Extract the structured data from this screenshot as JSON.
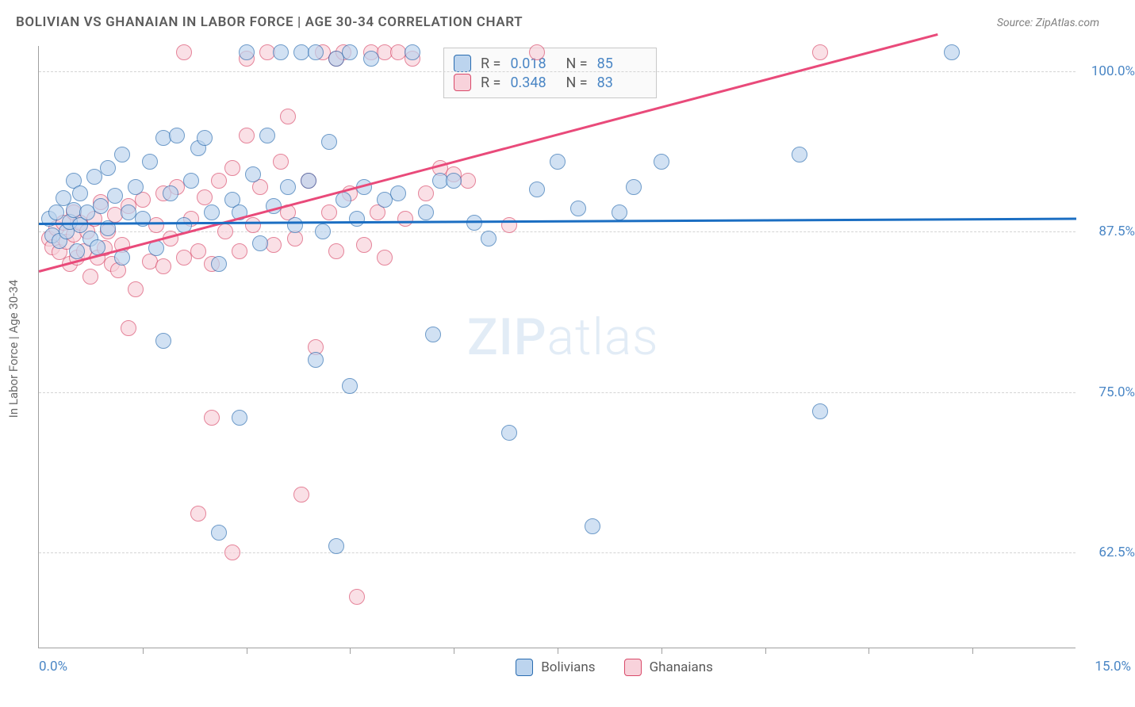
{
  "title": "BOLIVIAN VS GHANAIAN IN LABOR FORCE | AGE 30-34 CORRELATION CHART",
  "source": "Source: ZipAtlas.com",
  "y_axis_label": "In Labor Force | Age 30-34",
  "watermark_a": "ZIP",
  "watermark_b": "atlas",
  "chart": {
    "type": "scatter-with-trend",
    "background_color": "#ffffff",
    "grid_color": "#d4d4d4",
    "axis_color": "#a0a0a0",
    "xlim": [
      0,
      15
    ],
    "ylim": [
      55,
      102
    ],
    "x_tick_positions": [
      1.5,
      3.0,
      4.5,
      6.0,
      7.5,
      9.0,
      10.5,
      12.0,
      13.5
    ],
    "x_start_label": "0.0%",
    "x_end_label": "15.0%",
    "y_gridlines": [
      62.5,
      75.0,
      87.5,
      100.0
    ],
    "y_tick_labels": [
      "62.5%",
      "75.0%",
      "87.5%",
      "100.0%"
    ],
    "label_color": "#4a86c5",
    "label_fontsize": 17,
    "title_fontsize": 17,
    "title_color": "#5c5c5c",
    "marker_radius": 10,
    "marker_opacity": 0.68
  },
  "series": {
    "blue": {
      "name": "Bolivians",
      "fill": "#bcd4ee",
      "stroke": "#2a6cb0",
      "trend_color": "#1b6ec2",
      "trend": {
        "x1": 0,
        "y1": 88.2,
        "x2": 15,
        "y2": 88.6
      },
      "stats": {
        "R": "0.018",
        "N": "85"
      },
      "points": [
        [
          0.15,
          88.5
        ],
        [
          0.2,
          87.2
        ],
        [
          0.25,
          89.0
        ],
        [
          0.3,
          86.8
        ],
        [
          0.35,
          90.1
        ],
        [
          0.4,
          87.5
        ],
        [
          0.45,
          88.3
        ],
        [
          0.5,
          89.2
        ],
        [
          0.5,
          91.5
        ],
        [
          0.55,
          86.0
        ],
        [
          0.6,
          88.0
        ],
        [
          0.6,
          90.5
        ],
        [
          0.7,
          89.0
        ],
        [
          0.75,
          87.0
        ],
        [
          0.8,
          91.8
        ],
        [
          0.85,
          86.3
        ],
        [
          0.9,
          89.5
        ],
        [
          1.0,
          92.5
        ],
        [
          1.0,
          87.8
        ],
        [
          1.1,
          90.3
        ],
        [
          1.2,
          93.5
        ],
        [
          1.2,
          85.5
        ],
        [
          1.3,
          89.0
        ],
        [
          1.4,
          91.0
        ],
        [
          1.5,
          88.5
        ],
        [
          1.6,
          93.0
        ],
        [
          1.7,
          86.2
        ],
        [
          1.8,
          94.8
        ],
        [
          1.8,
          79.0
        ],
        [
          1.9,
          90.5
        ],
        [
          2.0,
          95.0
        ],
        [
          2.1,
          88.0
        ],
        [
          2.2,
          91.5
        ],
        [
          2.3,
          94.0
        ],
        [
          2.4,
          94.8
        ],
        [
          2.5,
          89.0
        ],
        [
          2.6,
          85.0
        ],
        [
          2.6,
          64.0
        ],
        [
          2.8,
          90.0
        ],
        [
          2.9,
          89.0
        ],
        [
          2.9,
          73.0
        ],
        [
          3.0,
          101.5
        ],
        [
          3.1,
          92.0
        ],
        [
          3.2,
          86.6
        ],
        [
          3.3,
          95.0
        ],
        [
          3.4,
          89.5
        ],
        [
          3.5,
          101.5
        ],
        [
          3.6,
          91.0
        ],
        [
          3.7,
          88.0
        ],
        [
          3.8,
          101.5
        ],
        [
          3.9,
          91.5
        ],
        [
          4.0,
          101.5
        ],
        [
          4.0,
          77.5
        ],
        [
          4.1,
          87.5
        ],
        [
          4.2,
          94.5
        ],
        [
          4.3,
          101.0
        ],
        [
          4.3,
          63.0
        ],
        [
          4.4,
          90.0
        ],
        [
          4.5,
          101.5
        ],
        [
          4.5,
          75.5
        ],
        [
          4.6,
          88.5
        ],
        [
          4.7,
          91.0
        ],
        [
          4.8,
          101.0
        ],
        [
          5.0,
          90.0
        ],
        [
          5.2,
          90.5
        ],
        [
          5.4,
          101.5
        ],
        [
          5.6,
          89.0
        ],
        [
          5.7,
          79.5
        ],
        [
          5.8,
          91.5
        ],
        [
          6.0,
          91.5
        ],
        [
          6.3,
          88.2
        ],
        [
          6.5,
          87.0
        ],
        [
          6.8,
          71.8
        ],
        [
          7.2,
          90.8
        ],
        [
          7.5,
          93.0
        ],
        [
          7.8,
          89.3
        ],
        [
          8.0,
          64.5
        ],
        [
          8.4,
          89.0
        ],
        [
          8.6,
          91.0
        ],
        [
          9.0,
          93.0
        ],
        [
          11.0,
          93.5
        ],
        [
          11.3,
          73.5
        ],
        [
          13.2,
          101.5
        ]
      ]
    },
    "pink": {
      "name": "Ghanaians",
      "fill": "#f8d2db",
      "stroke": "#d94a6a",
      "trend_color": "#e94a7a",
      "trend": {
        "x1": 0,
        "y1": 84.5,
        "x2": 13.0,
        "y2": 103.0
      },
      "stats": {
        "R": "0.348",
        "N": "83"
      },
      "points": [
        [
          0.15,
          87.0
        ],
        [
          0.2,
          86.3
        ],
        [
          0.25,
          87.8
        ],
        [
          0.3,
          85.9
        ],
        [
          0.35,
          88.2
        ],
        [
          0.4,
          86.7
        ],
        [
          0.45,
          85.0
        ],
        [
          0.5,
          87.3
        ],
        [
          0.5,
          89.0
        ],
        [
          0.55,
          85.5
        ],
        [
          0.6,
          88.2
        ],
        [
          0.65,
          86.0
        ],
        [
          0.7,
          87.5
        ],
        [
          0.75,
          84.0
        ],
        [
          0.8,
          88.5
        ],
        [
          0.85,
          85.5
        ],
        [
          0.9,
          89.8
        ],
        [
          0.95,
          86.2
        ],
        [
          1.0,
          87.5
        ],
        [
          1.05,
          85.0
        ],
        [
          1.1,
          88.8
        ],
        [
          1.15,
          84.5
        ],
        [
          1.2,
          86.5
        ],
        [
          1.3,
          80.0
        ],
        [
          1.3,
          89.5
        ],
        [
          1.4,
          83.0
        ],
        [
          1.5,
          90.0
        ],
        [
          1.6,
          85.2
        ],
        [
          1.7,
          88.0
        ],
        [
          1.8,
          90.5
        ],
        [
          1.8,
          84.8
        ],
        [
          1.9,
          87.0
        ],
        [
          2.0,
          91.0
        ],
        [
          2.1,
          101.5
        ],
        [
          2.1,
          85.5
        ],
        [
          2.2,
          88.5
        ],
        [
          2.3,
          86.0
        ],
        [
          2.3,
          65.5
        ],
        [
          2.4,
          90.2
        ],
        [
          2.5,
          85.0
        ],
        [
          2.5,
          73.0
        ],
        [
          2.6,
          91.5
        ],
        [
          2.7,
          87.5
        ],
        [
          2.8,
          92.5
        ],
        [
          2.8,
          62.5
        ],
        [
          2.9,
          86.0
        ],
        [
          3.0,
          95.0
        ],
        [
          3.0,
          101.0
        ],
        [
          3.1,
          88.0
        ],
        [
          3.2,
          91.0
        ],
        [
          3.3,
          101.5
        ],
        [
          3.4,
          86.5
        ],
        [
          3.5,
          93.0
        ],
        [
          3.6,
          89.0
        ],
        [
          3.6,
          96.5
        ],
        [
          3.7,
          87.0
        ],
        [
          3.8,
          67.0
        ],
        [
          3.9,
          91.5
        ],
        [
          4.0,
          78.5
        ],
        [
          4.1,
          101.5
        ],
        [
          4.2,
          89.0
        ],
        [
          4.3,
          101.0
        ],
        [
          4.3,
          86.0
        ],
        [
          4.4,
          101.5
        ],
        [
          4.5,
          90.5
        ],
        [
          4.6,
          59.0
        ],
        [
          4.7,
          86.5
        ],
        [
          4.8,
          101.5
        ],
        [
          4.9,
          89.0
        ],
        [
          5.0,
          85.5
        ],
        [
          5.0,
          101.5
        ],
        [
          5.2,
          101.5
        ],
        [
          5.3,
          88.5
        ],
        [
          5.4,
          101.0
        ],
        [
          5.6,
          90.5
        ],
        [
          5.8,
          92.5
        ],
        [
          6.0,
          92.0
        ],
        [
          6.2,
          91.5
        ],
        [
          6.8,
          88.0
        ],
        [
          7.2,
          101.5
        ],
        [
          11.3,
          101.5
        ]
      ]
    }
  },
  "stats_box": {
    "r_label": "R =",
    "n_label": "N ="
  },
  "legend": {
    "items": [
      "blue",
      "pink"
    ]
  }
}
